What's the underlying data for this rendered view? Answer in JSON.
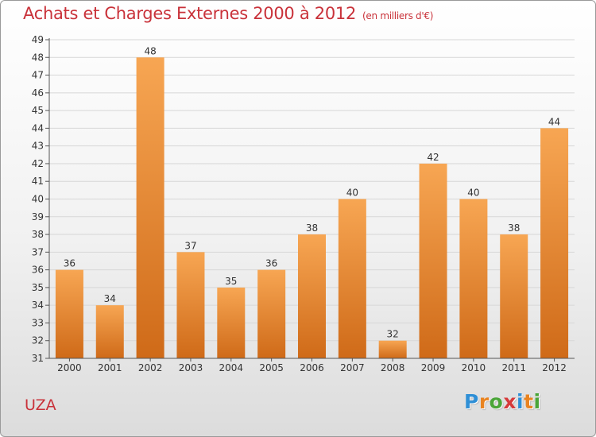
{
  "header": {
    "title": "Achats et Charges Externes 2000 à 2012",
    "subtitle": "(en milliers d'€)"
  },
  "footer": {
    "place_label": "UZA",
    "brand_letters": [
      "P",
      "r",
      "o",
      "x",
      "i",
      "t",
      "i"
    ],
    "brand_colors": [
      "#2f8fd6",
      "#e9831f",
      "#4aa538",
      "#d63a3a",
      "#2f8fd6",
      "#e9831f",
      "#4aa538"
    ]
  },
  "colors": {
    "bar_light": "#f7a653",
    "bar_dark": "#cf6a18",
    "title": "#c9323a",
    "axis": "#555555",
    "grid": "#d7d7d7"
  },
  "chart_data": {
    "type": "bar",
    "title": "Achats et Charges Externes 2000 à 2012",
    "subtitle": "(en milliers d'€)",
    "xlabel": "",
    "ylabel": "",
    "categories": [
      "2000",
      "2001",
      "2002",
      "2003",
      "2004",
      "2005",
      "2006",
      "2007",
      "2008",
      "2009",
      "2010",
      "2011",
      "2012"
    ],
    "values": [
      36,
      34,
      48,
      37,
      35,
      36,
      38,
      40,
      32,
      42,
      40,
      38,
      44
    ],
    "data_labels": [
      "36",
      "34",
      "48",
      "37",
      "35",
      "36",
      "38",
      "40",
      "32",
      "42",
      "40",
      "38",
      "44"
    ],
    "ylim": [
      31,
      49
    ],
    "yticks": [
      31,
      32,
      33,
      34,
      35,
      36,
      37,
      38,
      39,
      40,
      41,
      42,
      43,
      44,
      45,
      46,
      47,
      48,
      49
    ],
    "grid": true,
    "legend": "none"
  }
}
